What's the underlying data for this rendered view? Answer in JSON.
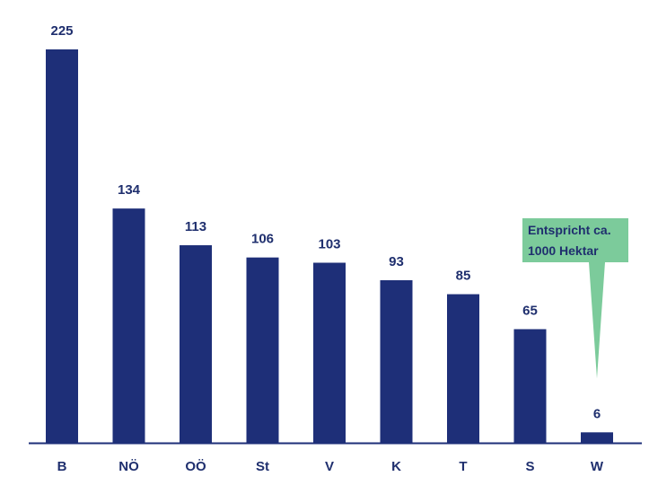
{
  "colors": {
    "bar": "#1e2f78",
    "text": "#1f2f6e",
    "axis": "#1e2f78",
    "callout_fill": "#7ccb9b"
  },
  "chart_data": {
    "type": "bar",
    "categories": [
      "B",
      "NÖ",
      "OÖ",
      "St",
      "V",
      "K",
      "T",
      "S",
      "W"
    ],
    "values": [
      225,
      134,
      113,
      106,
      103,
      93,
      85,
      65,
      6
    ],
    "data_labels": [
      "225",
      "134",
      "113",
      "106",
      "103",
      "93",
      "85",
      "65",
      "6"
    ],
    "title": "",
    "xlabel": "",
    "ylabel": "",
    "ylim": [
      0,
      225
    ],
    "grid": false,
    "annotation": {
      "target_category": "W",
      "lines": [
        "Entspricht ca.",
        "1000 Hektar"
      ]
    }
  }
}
